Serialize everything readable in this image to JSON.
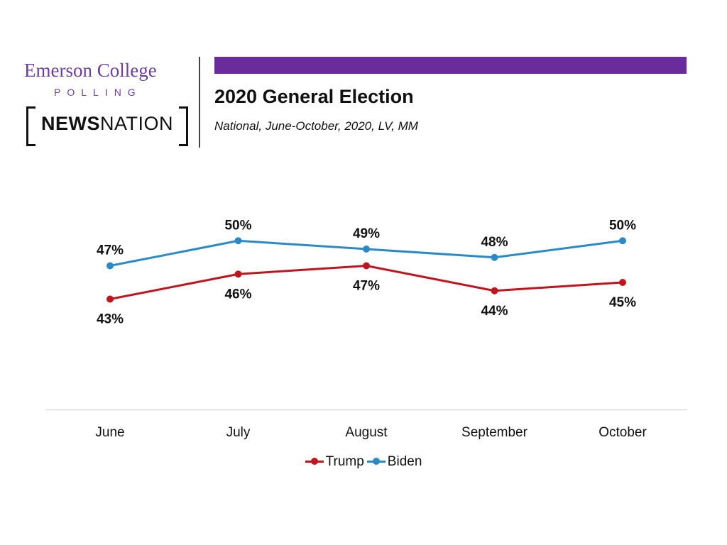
{
  "logo": {
    "emerson": "Emerson College",
    "polling": "POLLING",
    "news_bold": "NEWS",
    "news_light": "NATION"
  },
  "header": {
    "title": "2020 General Election",
    "subtitle": "National, June-October, 2020, LV, MM"
  },
  "colors": {
    "accent": "#6a2c9c",
    "trump": "#c0141e",
    "biden": "#2a8ac6"
  },
  "chart_data": {
    "type": "line",
    "title": "2020 General Election",
    "subtitle": "National, June-October, 2020, LV, MM",
    "xlabel": "",
    "ylabel": "",
    "categories": [
      "June",
      "July",
      "August",
      "September",
      "October"
    ],
    "series": [
      {
        "name": "Trump",
        "values": [
          43,
          46,
          47,
          44,
          45
        ],
        "labels": [
          "43%",
          "46%",
          "47%",
          "44%",
          "45%"
        ],
        "label_position": "below"
      },
      {
        "name": "Biden",
        "values": [
          47,
          50,
          49,
          48,
          50
        ],
        "labels": [
          "47%",
          "50%",
          "49%",
          "48%",
          "50%"
        ],
        "label_position": "above"
      }
    ],
    "grid": false,
    "legend_position": "bottom"
  }
}
